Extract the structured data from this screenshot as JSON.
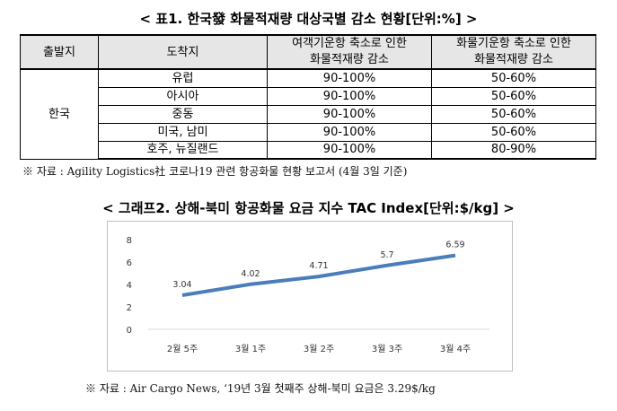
{
  "table_title": "< 표1. 한국發 화물적재량 대상국별 감소 현황[단위:%] >",
  "table": {
    "headers": [
      "출발지",
      "도착지",
      "여객기운항 축소로 인한\n화물적재량 감소",
      "화물기운항 축소로 인한\n화물적재량 감소"
    ],
    "origin": "한국",
    "rows": [
      {
        "dest": "유럽",
        "passenger": "90-100%",
        "freighter": "50-60%"
      },
      {
        "dest": "아시아",
        "passenger": "90-100%",
        "freighter": "50-60%"
      },
      {
        "dest": "중동",
        "passenger": "90-100%",
        "freighter": "50-60%"
      },
      {
        "dest": "미국, 남미",
        "passenger": "90-100%",
        "freighter": "50-60%"
      },
      {
        "dest": "호주, 뉴질랜드",
        "passenger": "90-100%",
        "freighter": "80-90%"
      }
    ]
  },
  "table_source": "※ 자료 : Agility Logistics社 코로나19 관련 항공화물 현황 보고서 (4월 3일 기준)",
  "chart_title": "< 그래프2. 상해-북미 항공화물 요금 지수 TAC Index[단위:$/kg] >",
  "chart_data": {
    "type": "line",
    "categories": [
      "2월 5주",
      "3월 1주",
      "3월 2주",
      "3월 3주",
      "3월 4주"
    ],
    "values": [
      3.04,
      4.02,
      4.71,
      5.7,
      6.59
    ],
    "data_labels": [
      "3.04",
      "4.02",
      "4.71",
      "5.7",
      "6.59"
    ],
    "ylim": [
      0,
      8
    ],
    "yticks": [
      "0",
      "2",
      "4",
      "6",
      "8"
    ],
    "grid": false,
    "legend": "none",
    "line_color": "#4a7ebb"
  },
  "chart_source": "※ 자료 : Air Cargo News, ‘19년 3월 첫째주 상해-북미 요금은 3.29$/kg"
}
